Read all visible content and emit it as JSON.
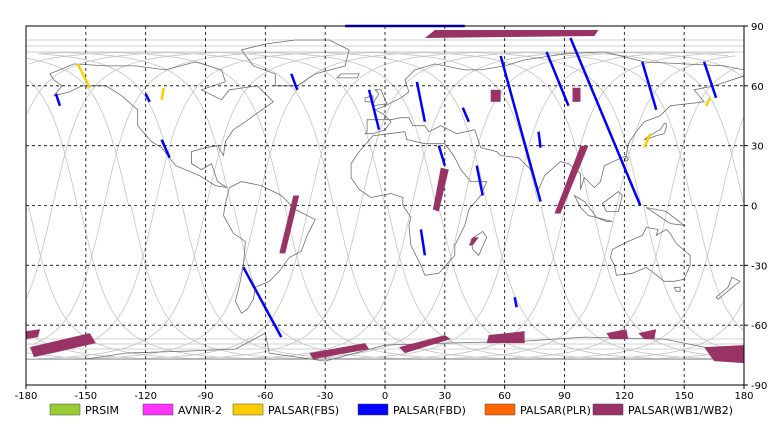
{
  "map": {
    "lon_range": [
      -180,
      180
    ],
    "lat_range": [
      -90,
      90
    ],
    "x_ticks": [
      "-180",
      "-150",
      "-120",
      "-90",
      "-60",
      "-30",
      "0",
      "30",
      "60",
      "90",
      "120",
      "150",
      "180"
    ],
    "y_ticks": [
      "90",
      "60",
      "30",
      "0",
      "-30",
      "-60",
      "-90"
    ],
    "grid": "dashed",
    "background": "#ffffff"
  },
  "legend": {
    "placement": "bottom",
    "items": [
      {
        "label": "PRSIM",
        "color": "#99cc33"
      },
      {
        "label": "AVNIR-2",
        "color": "#ff33ff"
      },
      {
        "label": "PALSAR(FBS)",
        "color": "#ffcc00"
      },
      {
        "label": "PALSAR(FBD)",
        "color": "#0000ff"
      },
      {
        "label": "PALSAR(PLR)",
        "color": "#ff6600"
      },
      {
        "label": "PALSAR(WB1/WB2)",
        "color": "#993366"
      }
    ]
  },
  "swaths": {
    "fbd": [
      {
        "from": [
          -165,
          56
        ],
        "to": [
          -163,
          50
        ]
      },
      {
        "from": [
          -120,
          56
        ],
        "to": [
          -118,
          52
        ]
      },
      {
        "from": [
          -112,
          33
        ],
        "to": [
          -108,
          24
        ]
      },
      {
        "from": [
          -47,
          66
        ],
        "to": [
          -44,
          58
        ]
      },
      {
        "from": [
          -71,
          -31
        ],
        "to": [
          -52,
          -66
        ]
      },
      {
        "from": [
          -20,
          90
        ],
        "to": [
          40,
          90
        ]
      },
      {
        "from": [
          -8,
          58
        ],
        "to": [
          -3,
          38
        ]
      },
      {
        "from": [
          16,
          62
        ],
        "to": [
          20,
          42
        ]
      },
      {
        "from": [
          27,
          30
        ],
        "to": [
          30,
          20
        ]
      },
      {
        "from": [
          18,
          -12
        ],
        "to": [
          20,
          -25
        ]
      },
      {
        "from": [
          39,
          49
        ],
        "to": [
          42,
          42
        ]
      },
      {
        "from": [
          46,
          20
        ],
        "to": [
          49,
          5
        ]
      },
      {
        "from": [
          58,
          75
        ],
        "to": [
          78,
          2
        ]
      },
      {
        "from": [
          65,
          -46
        ],
        "to": [
          66,
          -51
        ]
      },
      {
        "from": [
          81,
          77
        ],
        "to": [
          92,
          50
        ]
      },
      {
        "from": [
          93,
          84
        ],
        "to": [
          128,
          0
        ]
      },
      {
        "from": [
          129,
          72
        ],
        "to": [
          136,
          48
        ]
      },
      {
        "from": [
          160,
          72
        ],
        "to": [
          166,
          54
        ]
      },
      {
        "from": [
          77,
          37
        ],
        "to": [
          78,
          29
        ]
      }
    ],
    "fbs": [
      {
        "from": [
          -154,
          71
        ],
        "to": [
          -148,
          59
        ]
      },
      {
        "from": [
          -111,
          59
        ],
        "to": [
          -112,
          53
        ]
      },
      {
        "from": [
          133,
          36
        ],
        "to": [
          130,
          29
        ]
      },
      {
        "from": [
          163,
          54
        ],
        "to": [
          161,
          50
        ]
      }
    ],
    "wb": [
      {
        "poly": [
          [
            -180,
            -63
          ],
          [
            -173,
            -62
          ],
          [
            -174,
            -66
          ],
          [
            -180,
            -67
          ]
        ]
      },
      {
        "poly": [
          [
            -178,
            -71
          ],
          [
            -148,
            -64
          ],
          [
            -145,
            -69
          ],
          [
            -176,
            -76
          ]
        ]
      },
      {
        "poly": [
          [
            -46,
            5
          ],
          [
            -43,
            5
          ],
          [
            -50,
            -24
          ],
          [
            -53,
            -24
          ]
        ]
      },
      {
        "poly": [
          [
            -38,
            -74
          ],
          [
            -10,
            -69
          ],
          [
            -8,
            -72
          ],
          [
            -36,
            -77
          ]
        ]
      },
      {
        "poly": [
          [
            7,
            -71
          ],
          [
            30,
            -65
          ],
          [
            33,
            -67
          ],
          [
            10,
            -74
          ]
        ]
      },
      {
        "poly": [
          [
            25,
            88
          ],
          [
            107,
            88
          ],
          [
            105,
            85
          ],
          [
            20,
            84
          ]
        ]
      },
      {
        "poly": [
          [
            28,
            19
          ],
          [
            32,
            18
          ],
          [
            27,
            -3
          ],
          [
            24,
            -2
          ]
        ]
      },
      {
        "poly": [
          [
            53,
            58
          ],
          [
            58,
            58
          ],
          [
            58,
            52
          ],
          [
            53,
            52
          ]
        ]
      },
      {
        "poly": [
          [
            52,
            -65
          ],
          [
            70,
            -63
          ],
          [
            70,
            -69
          ],
          [
            51,
            -69
          ]
        ]
      },
      {
        "poly": [
          [
            94,
            59
          ],
          [
            98,
            59
          ],
          [
            98,
            52
          ],
          [
            94,
            52
          ]
        ]
      },
      {
        "poly": [
          [
            98,
            30
          ],
          [
            102,
            30
          ],
          [
            88,
            -4
          ],
          [
            85,
            -4
          ]
        ]
      },
      {
        "poly": [
          [
            44,
            -16
          ],
          [
            47,
            -16
          ],
          [
            44,
            -20
          ],
          [
            42,
            -20
          ]
        ]
      },
      {
        "poly": [
          [
            111,
            -64
          ],
          [
            121,
            -62
          ],
          [
            122,
            -67
          ],
          [
            113,
            -67
          ]
        ]
      },
      {
        "poly": [
          [
            127,
            -64
          ],
          [
            136,
            -62
          ],
          [
            135,
            -67
          ],
          [
            130,
            -67
          ]
        ]
      },
      {
        "poly": [
          [
            160,
            -71
          ],
          [
            180,
            -70
          ],
          [
            180,
            -79
          ],
          [
            165,
            -78
          ]
        ]
      }
    ]
  }
}
